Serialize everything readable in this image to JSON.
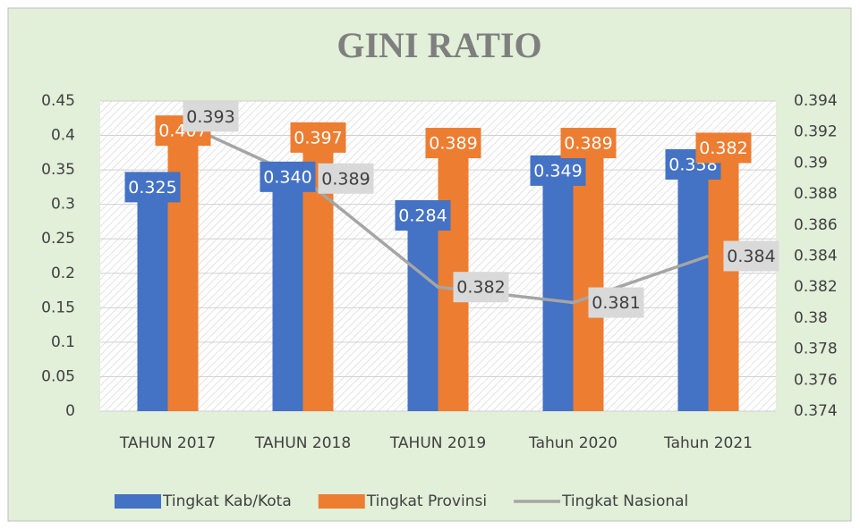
{
  "chart_data": {
    "type": "bar",
    "title": "GINI RATIO",
    "categories": [
      "TAHUN 2017",
      "TAHUN 2018",
      "TAHUN 2019",
      "Tahun 2020",
      "Tahun 2021"
    ],
    "series": [
      {
        "name": "Tingkat Kab/Kota",
        "type": "bar",
        "color": "#4472c4",
        "values": [
          0.325,
          0.34,
          0.284,
          0.349,
          0.358
        ],
        "value_labels": [
          "0.325",
          "0.340",
          "0.284",
          "0.349",
          "0.358"
        ]
      },
      {
        "name": "Tingkat Provinsi",
        "type": "bar",
        "color": "#ed7d31",
        "values": [
          0.407,
          0.397,
          0.389,
          0.389,
          0.382
        ],
        "value_labels": [
          "0.407",
          "0.397",
          "0.389",
          "0.389",
          "0.382"
        ]
      },
      {
        "name": "Tingkat Nasional",
        "type": "line",
        "axis": "y2",
        "color": "#a5a5a5",
        "values": [
          0.393,
          0.389,
          0.382,
          0.381,
          0.384
        ],
        "value_labels": [
          "0.393",
          "0.389",
          "0.382",
          "0.381",
          "0.384"
        ]
      }
    ],
    "ylim": [
      0,
      0.45
    ],
    "yticks": [
      0,
      0.05,
      0.1,
      0.15,
      0.2,
      0.25,
      0.3,
      0.35,
      0.4,
      0.45
    ],
    "y2lim": [
      0.374,
      0.394
    ],
    "y2ticks": [
      0.374,
      0.376,
      0.378,
      0.38,
      0.382,
      0.384,
      0.386,
      0.388,
      0.39,
      0.392,
      0.394
    ],
    "grid": true,
    "legend": "bottom"
  }
}
